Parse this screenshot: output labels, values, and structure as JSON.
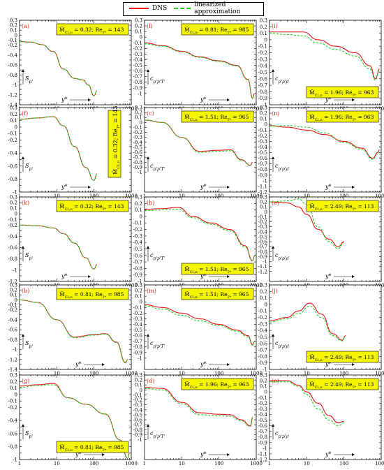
{
  "legend": {
    "dns": "DNS",
    "linear": "linearized approximation"
  },
  "colors": {
    "dns": "#e8121a",
    "linear": "#1ed41e",
    "label_bg": "#f5f500",
    "letter": "#d42a1a"
  },
  "axis_symbols": {
    "x": "y*",
    "col1_y": "S_{p'}",
    "col2_y": "c_{p'p'T'}",
    "col3_y": "c_{p'p'ρ'}"
  },
  "chart_data": [
    {
      "id": "a",
      "label": "(a)",
      "type": "line",
      "xscale": "log",
      "xlim": [
        1,
        1000
      ],
      "ylim": [
        -1.4,
        0.3
      ],
      "box": "M̄_{CL,n} = 0.32; Re_{T*} = 143",
      "box_pos": "top",
      "x": [
        1,
        2,
        4,
        8,
        15,
        30,
        50,
        70,
        100,
        120
      ],
      "series": [
        {
          "name": "DNS",
          "values": [
            -0.13,
            -0.14,
            -0.19,
            -0.33,
            -0.68,
            -0.87,
            -0.9,
            -1.0,
            -1.22,
            -1.12
          ]
        },
        {
          "name": "linearized approximation",
          "values": [
            -0.13,
            -0.14,
            -0.19,
            -0.33,
            -0.68,
            -0.87,
            -0.9,
            -1.0,
            -1.22,
            -1.12
          ]
        }
      ]
    },
    {
      "id": "f",
      "label": "(f)",
      "type": "line",
      "xscale": "log",
      "xlim": [
        1,
        1000
      ],
      "ylim": [
        -1.0,
        0.3
      ],
      "box": "M̄_{CL,n} = 0.32; Re_{T*} = 143",
      "box_pos": "vertical",
      "x": [
        1,
        3,
        8,
        15,
        30,
        60,
        100,
        120
      ],
      "series": [
        {
          "name": "DNS",
          "values": [
            0.12,
            0.14,
            0.16,
            0.02,
            -0.3,
            -0.62,
            -0.82,
            -0.72
          ]
        },
        {
          "name": "linearized approximation",
          "values": [
            0.12,
            0.14,
            0.16,
            0.02,
            -0.3,
            -0.62,
            -0.82,
            -0.72
          ]
        }
      ]
    },
    {
      "id": "k",
      "label": "(k)",
      "type": "line",
      "xscale": "log",
      "xlim": [
        1,
        1000
      ],
      "ylim": [
        -1.2,
        0.3
      ],
      "box": "M̄_{CL,n} = 0.32; Re_{T*} = 143",
      "box_pos": "top",
      "x": [
        1,
        3,
        8,
        15,
        30,
        60,
        100,
        120
      ],
      "series": [
        {
          "name": "DNS",
          "values": [
            -0.2,
            -0.21,
            -0.25,
            -0.35,
            -0.52,
            -0.78,
            -0.98,
            -0.9
          ]
        },
        {
          "name": "linearized approximation",
          "values": [
            -0.2,
            -0.21,
            -0.25,
            -0.35,
            -0.52,
            -0.78,
            -0.98,
            -0.9
          ]
        }
      ]
    },
    {
      "id": "b",
      "label": "(b)",
      "type": "line",
      "xscale": "log",
      "xlim": [
        1,
        1000
      ],
      "ylim": [
        -1.4,
        0.3
      ],
      "box": "M̄_{CL,n} = 0.81; Re_{T*} = 985",
      "box_pos": "top",
      "x": [
        1,
        3,
        10,
        30,
        100,
        200,
        400,
        700,
        800
      ],
      "series": [
        {
          "name": "DNS",
          "values": [
            0,
            -0.05,
            -0.4,
            -0.75,
            -0.7,
            -0.68,
            -0.85,
            -1.26,
            -1.2
          ]
        },
        {
          "name": "linearized approximation",
          "values": [
            0,
            -0.05,
            -0.4,
            -0.76,
            -0.71,
            -0.69,
            -0.86,
            -1.27,
            -1.21
          ]
        }
      ]
    },
    {
      "id": "g",
      "label": "(g)",
      "type": "line",
      "xscale": "log",
      "xlim": [
        1,
        1000
      ],
      "ylim": [
        -1.0,
        0.3
      ],
      "box": "M̄_{CL,n} = 0.81; Re_{T*} = 985",
      "box_pos": "bottom",
      "x": [
        1,
        3,
        8,
        20,
        60,
        200,
        500,
        800,
        900
      ],
      "series": [
        {
          "name": "DNS",
          "values": [
            0.13,
            0.15,
            0.17,
            -0.05,
            -0.15,
            -0.3,
            -0.7,
            -0.98,
            -0.9
          ]
        },
        {
          "name": "linearized approximation",
          "values": [
            0.11,
            0.14,
            0.15,
            -0.05,
            -0.15,
            -0.3,
            -0.7,
            -0.98,
            -0.9
          ]
        }
      ]
    },
    {
      "id": "l",
      "label": "(l)",
      "type": "line",
      "xscale": "log",
      "xlim": [
        1,
        1000
      ],
      "ylim": [
        -1.2,
        0.3
      ],
      "box": "M̄_{CL,n} = 0.81; Re_{T*} = 985",
      "box_pos": "top",
      "x": [
        1,
        3,
        10,
        30,
        100,
        300,
        600,
        800,
        900
      ],
      "series": [
        {
          "name": "DNS",
          "values": [
            -0.1,
            -0.15,
            -0.25,
            -0.35,
            -0.42,
            -0.5,
            -0.75,
            -1.08,
            -1.0
          ]
        },
        {
          "name": "linearized approximation",
          "values": [
            -0.12,
            -0.16,
            -0.26,
            -0.36,
            -0.43,
            -0.51,
            -0.76,
            -1.09,
            -1.01
          ]
        }
      ]
    },
    {
      "id": "c",
      "label": "(c)",
      "type": "line",
      "xscale": "log",
      "xlim": [
        1,
        1000
      ],
      "ylim": [
        -1.4,
        0.3
      ],
      "box": "M̄_{CL,n} = 1.51; Re_{T*} = 965",
      "box_pos": "top",
      "x": [
        1,
        3,
        10,
        30,
        100,
        200,
        400,
        700,
        800
      ],
      "series": [
        {
          "name": "DNS",
          "values": [
            0.05,
            0,
            -0.3,
            -0.58,
            -0.56,
            -0.55,
            -0.75,
            -0.86,
            -0.8
          ]
        },
        {
          "name": "linearized approximation",
          "values": [
            0.05,
            0,
            -0.3,
            -0.6,
            -0.58,
            -0.57,
            -0.76,
            -0.87,
            -0.81
          ]
        }
      ]
    },
    {
      "id": "h",
      "label": "(h)",
      "type": "line",
      "xscale": "log",
      "xlim": [
        1,
        1000
      ],
      "ylim": [
        -1.0,
        0.3
      ],
      "box": "M̄_{CL,n} = 1.51; Re_{T*} = 965",
      "box_pos": "bottom",
      "x": [
        1,
        3,
        8,
        20,
        60,
        200,
        500,
        800,
        900
      ],
      "series": [
        {
          "name": "DNS",
          "values": [
            0.11,
            0.12,
            0.14,
            0,
            -0.1,
            -0.2,
            -0.45,
            -0.68,
            -0.6
          ]
        },
        {
          "name": "linearized approximation",
          "values": [
            0.09,
            0.1,
            0.11,
            -0.02,
            -0.12,
            -0.22,
            -0.47,
            -0.69,
            -0.61
          ]
        }
      ]
    },
    {
      "id": "m",
      "label": "(m)",
      "type": "line",
      "xscale": "log",
      "xlim": [
        1,
        1000
      ],
      "ylim": [
        -1.2,
        0.3
      ],
      "box": "M̄_{CL,n} = 1.51; Re_{T*} = 965",
      "box_pos": "top",
      "x": [
        1,
        3,
        10,
        30,
        100,
        300,
        600,
        800,
        900
      ],
      "series": [
        {
          "name": "DNS",
          "values": [
            -0.05,
            -0.1,
            -0.2,
            -0.3,
            -0.4,
            -0.5,
            -0.6,
            -0.76,
            -0.7
          ]
        },
        {
          "name": "linearized approximation",
          "values": [
            -0.07,
            -0.13,
            -0.24,
            -0.34,
            -0.42,
            -0.52,
            -0.62,
            -0.77,
            -0.71
          ]
        }
      ]
    },
    {
      "id": "d",
      "label": "(d)",
      "type": "line",
      "xscale": "log",
      "xlim": [
        1,
        1000
      ],
      "ylim": [
        -1.4,
        0.3
      ],
      "box": "M̄_{CL,n} = 1.96; Re_{T*} = 963",
      "box_pos": "top",
      "x": [
        1,
        3,
        10,
        30,
        100,
        200,
        400,
        700,
        800
      ],
      "series": [
        {
          "name": "DNS",
          "values": [
            0.05,
            0.03,
            -0.25,
            -0.46,
            -0.49,
            -0.5,
            -0.6,
            -0.72,
            -0.55
          ]
        },
        {
          "name": "linearized approximation",
          "values": [
            0.03,
            0,
            -0.28,
            -0.5,
            -0.52,
            -0.53,
            -0.62,
            -0.74,
            -0.57
          ]
        }
      ]
    },
    {
      "id": "i",
      "label": "(i)",
      "type": "line",
      "xscale": "log",
      "xlim": [
        1,
        1000
      ],
      "ylim": [
        -1.0,
        0.3
      ],
      "box": "M̄_{CL,n} = 1.96; Re_{T*} = 963",
      "box_pos": "bottom",
      "x": [
        1,
        3,
        8,
        20,
        60,
        200,
        500,
        700,
        900
      ],
      "series": [
        {
          "name": "DNS",
          "values": [
            0.12,
            0.12,
            0.12,
            0,
            -0.1,
            -0.2,
            -0.4,
            -0.6,
            -0.45
          ]
        },
        {
          "name": "linearized approximation",
          "values": [
            0.1,
            0.08,
            0.06,
            -0.05,
            -0.15,
            -0.25,
            -0.45,
            -0.62,
            -0.47
          ]
        }
      ]
    },
    {
      "id": "n",
      "label": "(n)",
      "type": "line",
      "xscale": "log",
      "xlim": [
        1,
        1000
      ],
      "ylim": [
        -1.2,
        0.3
      ],
      "box": "M̄_{CL,n} = 1.96; Re_{T*} = 963",
      "box_pos": "top",
      "x": [
        1,
        3,
        10,
        30,
        100,
        300,
        600,
        800,
        900
      ],
      "series": [
        {
          "name": "DNS",
          "values": [
            -0.02,
            -0.05,
            -0.1,
            -0.18,
            -0.3,
            -0.42,
            -0.6,
            -0.5,
            -0.45
          ]
        },
        {
          "name": "linearized approximation",
          "values": [
            -0.03,
            -0.02,
            -0.05,
            -0.15,
            -0.32,
            -0.44,
            -0.62,
            -0.52,
            -0.47
          ]
        }
      ]
    },
    {
      "id": "e",
      "label": "(e)",
      "type": "line",
      "xscale": "log",
      "xlim": [
        1,
        1000
      ],
      "ylim": [
        -1.4,
        0.3
      ],
      "box": "M̄_{CL,n} = 2.49; Re_{T*} = 113",
      "box_pos": "top",
      "x": [
        1,
        3,
        6,
        10,
        20,
        40,
        70,
        100
      ],
      "series": [
        {
          "name": "DNS",
          "values": [
            0.2,
            0.18,
            0.1,
            -0.05,
            -0.35,
            -0.55,
            -0.7,
            -0.6
          ]
        },
        {
          "name": "linearized approximation",
          "values": [
            0.2,
            0.22,
            0.26,
            0.15,
            -0.3,
            -0.6,
            -0.74,
            -0.62
          ]
        }
      ]
    },
    {
      "id": "j",
      "label": "(j)",
      "type": "line",
      "xscale": "log",
      "xlim": [
        1,
        1000
      ],
      "ylim": [
        -1.0,
        0.3
      ],
      "box": "M̄_{CL,n} = 2.49; Re_{T*} = 113",
      "box_pos": "bottom",
      "x": [
        1,
        3,
        6,
        12,
        25,
        50,
        90,
        110
      ],
      "series": [
        {
          "name": "DNS",
          "values": [
            -0.25,
            -0.2,
            -0.1,
            0.02,
            -0.15,
            -0.45,
            -0.55,
            -0.48
          ]
        },
        {
          "name": "linearized approximation",
          "values": [
            -0.27,
            -0.22,
            -0.14,
            -0.03,
            -0.2,
            -0.48,
            -0.56,
            -0.49
          ]
        }
      ]
    },
    {
      "id": "o",
      "label": "(o)",
      "type": "line",
      "xscale": "log",
      "xlim": [
        1,
        1000
      ],
      "ylim": [
        -1.2,
        0.3
      ],
      "box": "M̄_{CL,n} = 2.49; Re_{T*} = 113",
      "box_pos": "top",
      "x": [
        1,
        3,
        6,
        10,
        20,
        40,
        70,
        100
      ],
      "series": [
        {
          "name": "DNS",
          "values": [
            0.2,
            0.2,
            0.12,
            0,
            -0.2,
            -0.42,
            -0.55,
            -0.52
          ]
        },
        {
          "name": "linearized approximation",
          "values": [
            0.18,
            0.18,
            0.1,
            -0.05,
            -0.3,
            -0.5,
            -0.6,
            -0.55
          ]
        }
      ]
    }
  ]
}
